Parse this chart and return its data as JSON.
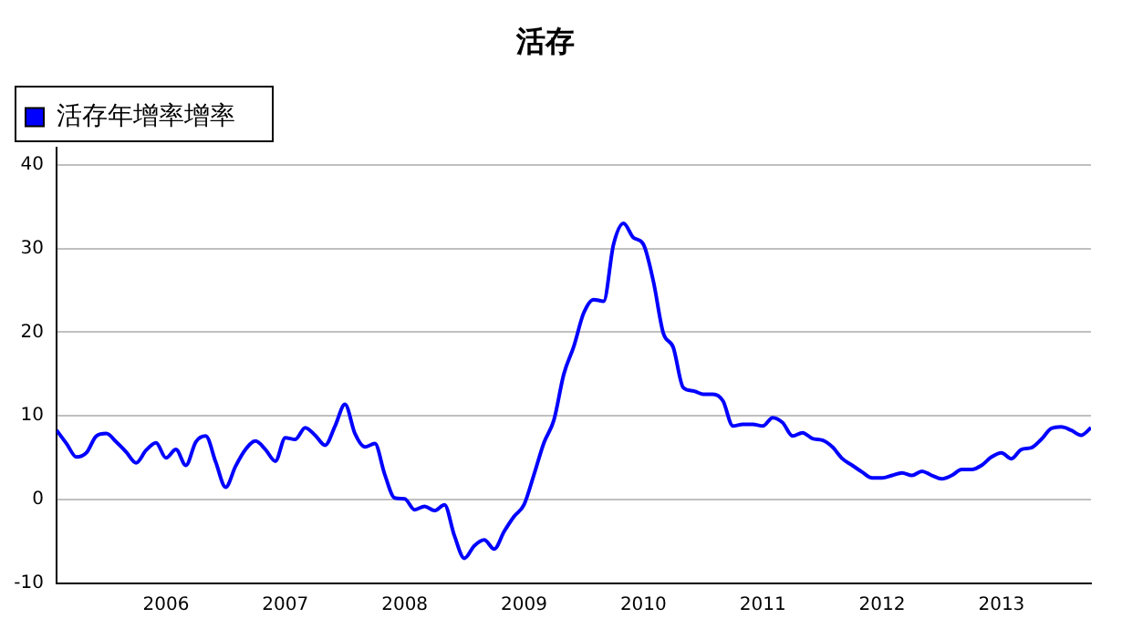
{
  "chart_data": {
    "type": "line",
    "title": "活存",
    "legend": "top left",
    "grid": "y",
    "marker": "none",
    "line_style": "solid",
    "xlim": [
      "2005-02",
      "2013-10"
    ],
    "xticks": [
      {
        "value": "2006-01",
        "label": "2006"
      },
      {
        "value": "2007-01",
        "label": "2007"
      },
      {
        "value": "2008-01",
        "label": "2008"
      },
      {
        "value": "2009-01",
        "label": "2009"
      },
      {
        "value": "2010-01",
        "label": "2010"
      },
      {
        "value": "2011-01",
        "label": "2011"
      },
      {
        "value": "2012-01",
        "label": "2012"
      },
      {
        "value": "2013-01",
        "label": "2013"
      }
    ],
    "ylim": [
      -10,
      42
    ],
    "yticks": [
      -10,
      0,
      10,
      20,
      30,
      40
    ],
    "x": [
      "2005-02",
      "2005-03",
      "2005-04",
      "2005-05",
      "2005-06",
      "2005-07",
      "2005-08",
      "2005-09",
      "2005-10",
      "2005-11",
      "2005-12",
      "2006-01",
      "2006-02",
      "2006-03",
      "2006-04",
      "2006-05",
      "2006-06",
      "2006-07",
      "2006-08",
      "2006-09",
      "2006-10",
      "2006-11",
      "2006-12",
      "2007-01",
      "2007-02",
      "2007-03",
      "2007-04",
      "2007-05",
      "2007-06",
      "2007-07",
      "2007-08",
      "2007-09",
      "2007-10",
      "2007-11",
      "2007-12",
      "2008-01",
      "2008-02",
      "2008-03",
      "2008-04",
      "2008-05",
      "2008-06",
      "2008-07",
      "2008-08",
      "2008-09",
      "2008-10",
      "2008-11",
      "2008-12",
      "2009-01",
      "2009-02",
      "2009-03",
      "2009-04",
      "2009-05",
      "2009-06",
      "2009-07",
      "2009-08",
      "2009-09",
      "2009-10",
      "2009-11",
      "2009-12",
      "2010-01",
      "2010-02",
      "2010-03",
      "2010-04",
      "2010-05",
      "2010-06",
      "2010-07",
      "2010-08",
      "2010-09",
      "2010-10",
      "2010-11",
      "2010-12",
      "2011-01",
      "2011-02",
      "2011-03",
      "2011-04",
      "2011-05",
      "2011-06",
      "2011-07",
      "2011-08",
      "2011-09",
      "2011-10",
      "2011-11",
      "2011-12",
      "2012-01",
      "2012-02",
      "2012-03",
      "2012-04",
      "2012-05",
      "2012-06",
      "2012-07",
      "2012-08",
      "2012-09",
      "2012-10",
      "2012-11",
      "2012-12",
      "2013-01",
      "2013-02",
      "2013-03",
      "2013-04",
      "2013-05",
      "2013-06",
      "2013-07",
      "2013-08",
      "2013-09",
      "2013-10"
    ],
    "series": [
      {
        "name": "活存年增率增率",
        "color": "#0000ff",
        "values": [
          8.3,
          6.7,
          5.1,
          5.6,
          7.6,
          7.9,
          6.9,
          5.7,
          4.4,
          5.9,
          6.8,
          5.0,
          6.0,
          4.1,
          6.9,
          7.6,
          4.5,
          1.5,
          4.0,
          6.0,
          7.0,
          6.0,
          4.6,
          7.4,
          7.2,
          8.6,
          7.7,
          6.5,
          8.8,
          11.4,
          7.9,
          6.3,
          6.7,
          3.0,
          0.2,
          0.1,
          -1.2,
          -0.8,
          -1.3,
          -0.6,
          -4.3,
          -7.0,
          -5.5,
          -4.8,
          -5.9,
          -3.8,
          -2.0,
          -0.6,
          3.0,
          6.8,
          9.5,
          15.0,
          18.3,
          22.3,
          23.9,
          23.7,
          30.5,
          33.0,
          31.3,
          30.5,
          26.1,
          19.9,
          18.2,
          13.4,
          13.0,
          12.6,
          12.6,
          11.8,
          8.8,
          9.0,
          9.0,
          8.8,
          9.8,
          9.2,
          7.6,
          8.0,
          7.3,
          7.1,
          6.3,
          4.9,
          4.1,
          3.3,
          2.6,
          2.6,
          2.9,
          3.2,
          2.9,
          3.4,
          2.9,
          2.5,
          2.9,
          3.6,
          3.6,
          4.1,
          5.1,
          5.6,
          4.9,
          6.0,
          6.2,
          7.2,
          8.5,
          8.7,
          8.3,
          7.7,
          8.6
        ]
      }
    ]
  }
}
